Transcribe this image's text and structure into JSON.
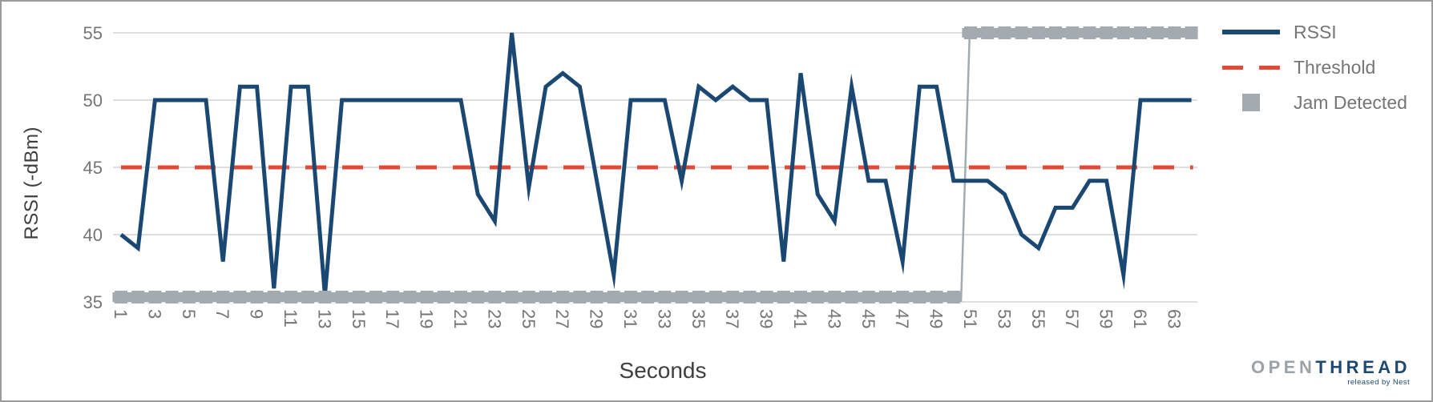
{
  "chart_data": {
    "type": "line",
    "title": "",
    "xlabel": "Seconds",
    "ylabel": "RSSI (-dBm)",
    "ylim": [
      35,
      55
    ],
    "y_ticks": [
      55,
      50,
      45,
      40,
      35
    ],
    "x_ticks": [
      1,
      3,
      5,
      7,
      9,
      11,
      13,
      15,
      17,
      19,
      21,
      23,
      25,
      27,
      29,
      31,
      33,
      35,
      37,
      39,
      41,
      43,
      45,
      47,
      49,
      51,
      53,
      55,
      57,
      59,
      61,
      63
    ],
    "grid": "horizontal",
    "legend_position": "top-right",
    "legend": [
      {
        "label": "RSSI",
        "marker": "solid-line",
        "color": "#1B4872"
      },
      {
        "label": "Threshold",
        "marker": "dashed-line",
        "color": "#E04A36"
      },
      {
        "label": "Jam Detected",
        "marker": "square",
        "color": "#A3ABB0"
      }
    ],
    "series": [
      {
        "name": "RSSI",
        "type": "line",
        "x_start": 1,
        "values": [
          40,
          39,
          50,
          50,
          50,
          50,
          38,
          51,
          51,
          36,
          51,
          51,
          35.5,
          50,
          50,
          50,
          50,
          50,
          50,
          50,
          50,
          43,
          41,
          55,
          43.5,
          51,
          52,
          51,
          44,
          37,
          50,
          50,
          50,
          44,
          51,
          50,
          51,
          50,
          50,
          38,
          52,
          43,
          41,
          51,
          44,
          44,
          38,
          51,
          51,
          44,
          44,
          44,
          43,
          40,
          39,
          42,
          42,
          44,
          44,
          37,
          50,
          50,
          50,
          50
        ]
      },
      {
        "name": "Threshold",
        "type": "horizontal-dashed-line",
        "value": 45,
        "x_start": 1,
        "x_end": 64.1
      },
      {
        "name": "Jam Detected",
        "type": "step",
        "value_low": 35,
        "value_high": 55,
        "x_start": 0.5,
        "high_after_x": 50.5,
        "x_end": 64.2
      }
    ]
  },
  "branding": {
    "logo_primary": "OPEN",
    "logo_secondary": "THREAD",
    "logo_tagline": "released by Nest"
  },
  "colors": {
    "rssi": "#1B4872",
    "threshold": "#E04A36",
    "jam": "#A3ABB0",
    "grid": "#CBCBCB",
    "tick_label": "#757575",
    "axis_title": "#3F3F3F",
    "logo_open": "#9BA3A9",
    "logo_thread": "#1D4872",
    "border": "#9B9B9B"
  }
}
